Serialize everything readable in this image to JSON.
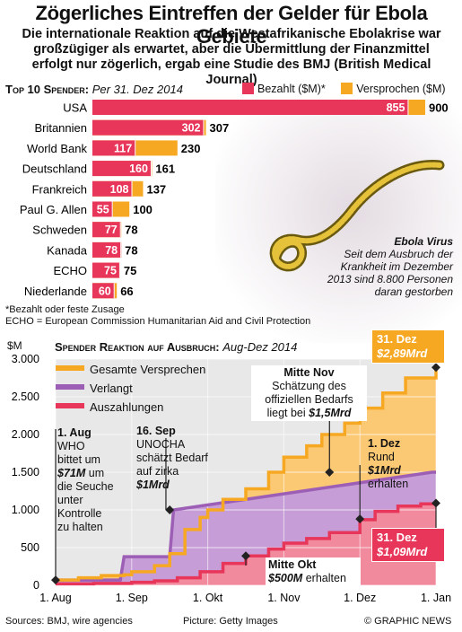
{
  "header": {
    "title": "Zögerliches Eintreffen der Gelder für Ebola Gebiete",
    "subtitle": "Die internationale Reaktion auf die Westafrikanische Ebolakrise war großzügiger als erwartet, aber die Übermittlung der Finanzmittel erfolgt nur zögerlich, ergab eine Studie des BMJ (British Medical Journal)"
  },
  "top10": {
    "heading": "Top 10 Spender:",
    "date": "Per 31. Dez 2014",
    "legend_paid": "Bezahlt ($M)*",
    "legend_pledged": "Versprochen ($M)",
    "footnote1": "*Bezahlt oder feste Zusage",
    "footnote2": "ECHO = European Commission Humanitarian Aid and Civil Protection"
  },
  "virus": {
    "name": "Ebola Virus",
    "text": "Seit dem Ausbruch der Krankheit im Dezember 2013 sind 8.800 Personen daran gestorben"
  },
  "line_section": {
    "heading": "Spender Reaktion auf Ausbruch:",
    "period": "Aug-Dez 2014",
    "unit": "$M",
    "legend_total": "Gesamte Versprechen",
    "legend_requested": "Verlangt",
    "legend_paid": "Auszahlungen",
    "ann_aug_date": "1. Aug",
    "ann_aug_text1": "WHO",
    "ann_aug_text2": "bittet um",
    "ann_aug_amount": "$71M",
    "ann_aug_text3": "um",
    "ann_aug_text4": "die Seuche",
    "ann_aug_text5": "unter",
    "ann_aug_text6": "Kontrolle",
    "ann_aug_text7": "zu halten",
    "ann_sep_date": "16. Sep",
    "ann_sep_text1": "UNOCHA",
    "ann_sep_text2": "schätzt Bedarf",
    "ann_sep_text3": "auf zirka",
    "ann_sep_amount": "$1Mrd",
    "ann_nov_date": "Mitte Nov",
    "ann_nov_text1": "Schätzung des",
    "ann_nov_text2": "offiziellen Bedarfs",
    "ann_nov_text3": "liegt bei",
    "ann_nov_amount": "$1,5Mrd",
    "ann_dec_date": "1. Dez",
    "ann_dec_text1": "Rund",
    "ann_dec_amount": "$1Mrd",
    "ann_dec_text2": "erhalten",
    "ann_oct_date": "Mitte Okt",
    "ann_oct_amount": "$500M",
    "ann_oct_text": "erhalten",
    "box_top_date": "31. Dez",
    "box_top_amount": "$2,89Mrd",
    "box_bot_date": "31. Dez",
    "box_bot_amount": "$1,09Mrd"
  },
  "footer": {
    "sources": "Sources: BMJ, wire agencies",
    "picture": "Picture: Getty Images",
    "credit": "© GRAPHIC NEWS"
  },
  "colors": {
    "paid": "#e8365a",
    "pledged": "#f7a823",
    "requested": "#9c5fb5",
    "pledged_area": "#fbc874",
    "requested_area": "#c69dd6",
    "paid_area": "#f18a9d"
  },
  "chart_data": [
    {
      "type": "bar",
      "title": "Top 10 Spender",
      "categories": [
        "USA",
        "Britannien",
        "World Bank",
        "Deutschland",
        "Frankreich",
        "Paul G. Allen",
        "Schweden",
        "Kanada",
        "ECHO",
        "Niederlande"
      ],
      "series": [
        {
          "name": "Bezahlt ($M)*",
          "values": [
            855,
            302,
            117,
            160,
            108,
            55,
            77,
            78,
            75,
            60
          ]
        },
        {
          "name": "Versprochen ($M)",
          "values": [
            900,
            307,
            230,
            161,
            137,
            100,
            78,
            78,
            75,
            66
          ]
        }
      ]
    },
    {
      "type": "line",
      "title": "Spender Reaktion auf Ausbruch",
      "ylabel": "$M",
      "ylim": [
        0,
        3000
      ],
      "yticks": [
        0,
        500,
        1000,
        1500,
        2000,
        2500,
        3000
      ],
      "ytick_labels": [
        "0",
        "500",
        "1.000",
        "1.500",
        "2.000",
        "2.500",
        "3.000"
      ],
      "xticks": [
        "1. Aug",
        "1. Sep",
        "1. Okt",
        "1. Nov",
        "1. Dez",
        "1. Jan"
      ],
      "x_unit": "Monate ab 1. Aug 2014",
      "series": [
        {
          "name": "Gesamte Versprechen",
          "x": [
            0,
            0.3,
            0.6,
            0.9,
            1.0,
            1.3,
            1.5,
            1.7,
            1.9,
            2.0,
            2.2,
            2.5,
            2.8,
            3.0,
            3.3,
            3.5,
            3.8,
            4.0,
            4.3,
            4.6,
            5.0
          ],
          "y": [
            70,
            100,
            130,
            140,
            180,
            260,
            420,
            740,
            900,
            1000,
            1140,
            1280,
            1500,
            1700,
            1850,
            2000,
            2150,
            2350,
            2550,
            2750,
            2890
          ]
        },
        {
          "name": "Verlangt",
          "x": [
            0,
            0.85,
            0.9,
            1.5,
            1.55,
            4.95,
            5.0
          ],
          "y": [
            70,
            70,
            380,
            380,
            1000,
            1500,
            1500
          ]
        },
        {
          "name": "Auszahlungen",
          "x": [
            0,
            0.5,
            1.0,
            1.3,
            1.6,
            1.9,
            2.2,
            2.5,
            2.8,
            3.0,
            3.3,
            3.6,
            4.0,
            4.2,
            4.5,
            4.8,
            5.0
          ],
          "y": [
            20,
            25,
            40,
            60,
            100,
            180,
            290,
            390,
            480,
            560,
            620,
            700,
            870,
            980,
            1050,
            1080,
            1090
          ]
        }
      ]
    }
  ]
}
